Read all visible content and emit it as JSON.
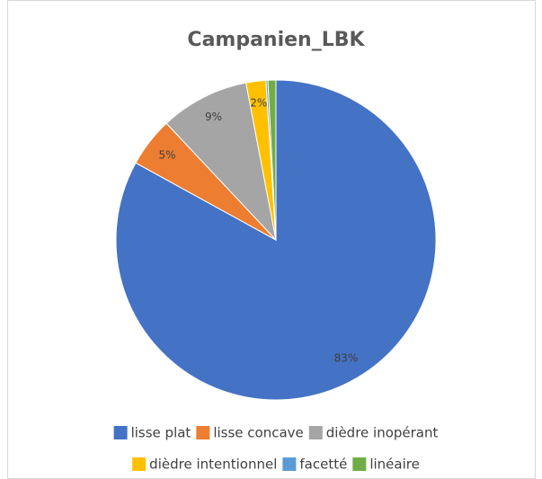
{
  "chart_data": {
    "type": "pie",
    "title": "Campanien_LBK",
    "categories": [
      "lisse plat",
      "lisse concave",
      "dièdre inopérant",
      "dièdre intentionnel",
      "facetté",
      "linéaire"
    ],
    "values": [
      83,
      5,
      9,
      2,
      0.2,
      0.8
    ],
    "value_labels": [
      "83%",
      "5%",
      "9%",
      "2%",
      null,
      null
    ],
    "colors": [
      "#4472c4",
      "#ed7d31",
      "#a5a5a5",
      "#ffc000",
      "#5b9bd5",
      "#70ad47"
    ],
    "legend": "bottom"
  }
}
